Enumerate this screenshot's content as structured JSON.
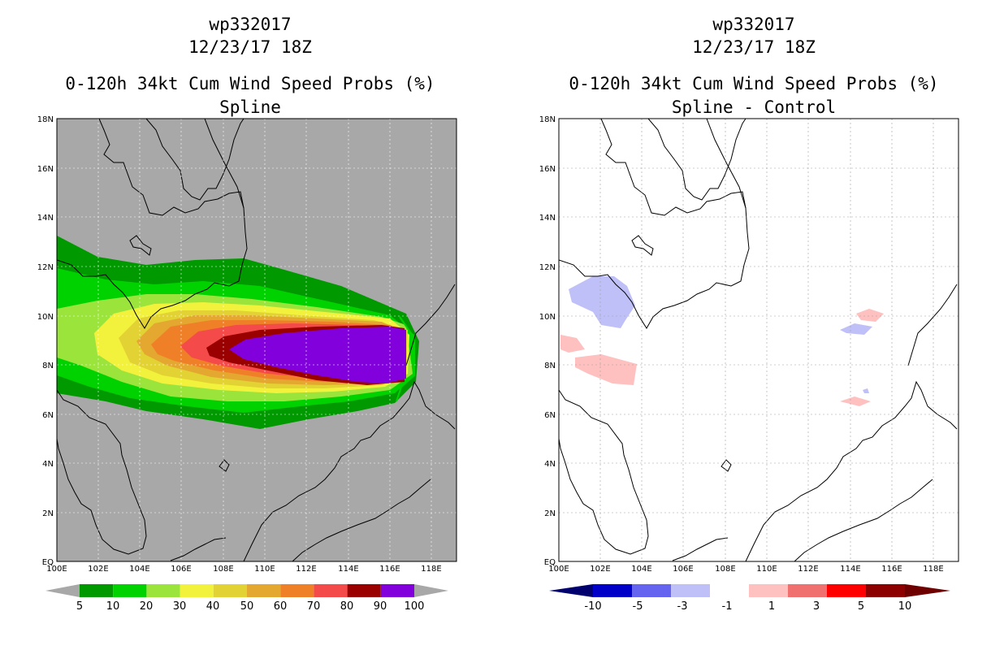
{
  "left_panel": {
    "title_line1": "wp332017",
    "title_line2": "12/23/17 18Z",
    "title_line3": "0-120h 34kt Cum Wind Speed Probs (%)",
    "title_line4": "Spline",
    "lon_ticks": [
      "100E",
      "102E",
      "104E",
      "106E",
      "108E",
      "110E",
      "112E",
      "114E",
      "116E",
      "118E"
    ],
    "lat_ticks": [
      "EQ",
      "2N",
      "4N",
      "6N",
      "8N",
      "10N",
      "12N",
      "14N",
      "16N",
      "18N"
    ],
    "colorbar_labels": [
      "5",
      "10",
      "20",
      "30",
      "40",
      "50",
      "60",
      "70",
      "80",
      "90",
      "100"
    ],
    "colorbar_colors": [
      "#009a00",
      "#00d200",
      "#9ae43c",
      "#f2f23c",
      "#e2d234",
      "#e4a72f",
      "#f08028",
      "#f44a4a",
      "#9a0000",
      "#8200dc"
    ],
    "background_color": "#a8a8a8"
  },
  "right_panel": {
    "title_line1": "wp332017",
    "title_line2": "12/23/17 18Z",
    "title_line3": "0-120h 34kt Cum Wind Speed Probs (%)",
    "title_line4": "Spline - Control",
    "lon_ticks": [
      "100E",
      "102E",
      "104E",
      "106E",
      "108E",
      "110E",
      "112E",
      "114E",
      "116E",
      "118E"
    ],
    "lat_ticks": [
      "EQ",
      "2N",
      "4N",
      "6N",
      "8N",
      "10N",
      "12N",
      "14N",
      "16N",
      "18N"
    ],
    "colorbar_labels": [
      "-10",
      "-5",
      "-3",
      "-1",
      "1",
      "3",
      "5",
      "10"
    ],
    "colorbar_colors": [
      "#0000c8",
      "#6464f0",
      "#c0c0f8",
      "#ffffff",
      "#ffc0c0",
      "#f07070",
      "#ff0000",
      "#8c0000"
    ],
    "end_colors": [
      "#00006e",
      "#6e0000"
    ]
  }
}
